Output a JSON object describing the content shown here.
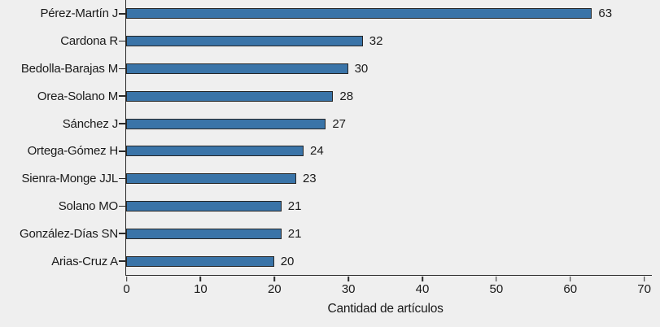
{
  "figure": {
    "background": "#efefef"
  },
  "chart_data": {
    "type": "bar",
    "orientation": "horizontal",
    "title": "",
    "xlabel": "Cantidad de artículos",
    "ylabel": "",
    "categories": [
      "Pérez-Martín J",
      "Cardona R",
      "Bedolla-Barajas M",
      "Orea-Solano M",
      "Sánchez J",
      "Ortega-Gómez H",
      "Sienra-Monge JJL",
      "Solano MO",
      "González-Días SN",
      "Arias-Cruz A"
    ],
    "values": [
      63,
      32,
      30,
      28,
      27,
      24,
      23,
      21,
      21,
      20
    ],
    "value_labels": [
      "63",
      "32",
      "30",
      "28",
      "27",
      "24",
      "23",
      "21",
      "21",
      "20"
    ],
    "xlim": [
      0,
      70
    ],
    "xticks": [
      0,
      10,
      20,
      30,
      40,
      50,
      60,
      70
    ],
    "grid": false,
    "legend": false,
    "colors": {
      "bar_fill": "#3a74a8",
      "bar_border": "#262626",
      "axis": "#2a2a2a",
      "text": "#1a1a1a",
      "background": "#efefef"
    }
  }
}
